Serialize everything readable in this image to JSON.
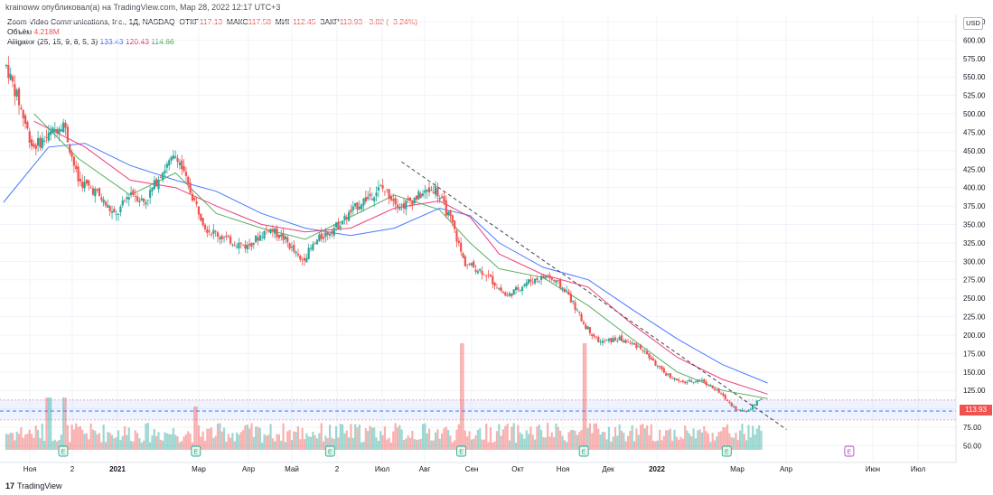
{
  "header": {
    "credit": "krainoww опубликовал(а) на TradingView.com, Мар 28, 2022 12:17 UTC+3",
    "title": "Zoom Video Communications, Inc., 1Д, NASDAQ",
    "ohlc": [
      {
        "label": "ОТКР",
        "value": "117.13"
      },
      {
        "label": "МАКС",
        "value": "117.58"
      },
      {
        "label": "МИН",
        "value": "112.45"
      },
      {
        "label": "ЗАКР",
        "value": "113.93"
      }
    ],
    "change": "−3.82 (−3.24%)",
    "volume_label": "Объём",
    "volume_value": "4.218M",
    "indicator_label": "Alligator (25, 15, 9, 8, 5, 3)",
    "jaw_value": "133.43",
    "teeth_value": "120.43",
    "lips_value": "114.66"
  },
  "footer": {
    "logo_text": "TradingView"
  },
  "chart_data": {
    "type": "candlestick",
    "currency": "USD",
    "last_price": "113.93",
    "y_ticks": [
      "625.00",
      "600.00",
      "575.00",
      "550.00",
      "525.00",
      "500.00",
      "475.00",
      "450.00",
      "425.00",
      "400.00",
      "375.00",
      "350.00",
      "325.00",
      "300.00",
      "275.00",
      "250.00",
      "225.00",
      "200.00",
      "175.00",
      "150.00",
      "125.00",
      "100.00",
      "75.00",
      "50.00"
    ],
    "x_ticks": [
      "Ноя",
      "2",
      "2021",
      "Мар",
      "Апр",
      "Май",
      "2",
      "Июл",
      "Авг",
      "Сен",
      "Окт",
      "Ноя",
      "Дек",
      "2022",
      "Мар",
      "Апр",
      "Июн",
      "Июл"
    ],
    "price_path": [
      [
        "2020-10-22",
        565
      ],
      [
        "2020-10-30",
        520
      ],
      [
        "2020-11-09",
        455
      ],
      [
        "2020-11-20",
        470
      ],
      [
        "2020-11-30",
        490
      ],
      [
        "2020-12-10",
        410
      ],
      [
        "2020-12-22",
        395
      ],
      [
        "2021-01-05",
        360
      ],
      [
        "2021-01-15",
        395
      ],
      [
        "2021-01-25",
        380
      ],
      [
        "2021-02-05",
        420
      ],
      [
        "2021-02-16",
        445
      ],
      [
        "2021-02-24",
        400
      ],
      [
        "2021-03-08",
        345
      ],
      [
        "2021-03-22",
        330
      ],
      [
        "2021-04-05",
        320
      ],
      [
        "2021-04-20",
        345
      ],
      [
        "2021-05-01",
        330
      ],
      [
        "2021-05-12",
        300
      ],
      [
        "2021-05-24",
        330
      ],
      [
        "2021-06-07",
        350
      ],
      [
        "2021-06-22",
        380
      ],
      [
        "2021-07-06",
        400
      ],
      [
        "2021-07-20",
        375
      ],
      [
        "2021-08-02",
        390
      ],
      [
        "2021-08-12",
        400
      ],
      [
        "2021-08-24",
        350
      ],
      [
        "2021-09-01",
        298
      ],
      [
        "2021-09-15",
        285
      ],
      [
        "2021-09-30",
        252
      ],
      [
        "2021-10-14",
        272
      ],
      [
        "2021-10-28",
        280
      ],
      [
        "2021-11-10",
        260
      ],
      [
        "2021-11-22",
        215
      ],
      [
        "2021-12-03",
        190
      ],
      [
        "2021-12-16",
        195
      ],
      [
        "2021-12-31",
        183
      ],
      [
        "2022-01-15",
        150
      ],
      [
        "2022-01-28",
        135
      ],
      [
        "2022-02-10",
        140
      ],
      [
        "2022-02-24",
        120
      ],
      [
        "2022-03-07",
        98
      ],
      [
        "2022-03-14",
        97
      ],
      [
        "2022-03-25",
        117
      ]
    ],
    "alligator": {
      "jaw": [
        [
          "2020-10-20",
          380
        ],
        [
          "2020-11-20",
          455
        ],
        [
          "2020-12-15",
          460
        ],
        [
          "2021-01-15",
          430
        ],
        [
          "2021-02-15",
          410
        ],
        [
          "2021-03-15",
          395
        ],
        [
          "2021-04-15",
          365
        ],
        [
          "2021-05-15",
          345
        ],
        [
          "2021-06-15",
          335
        ],
        [
          "2021-07-15",
          345
        ],
        [
          "2021-08-15",
          372
        ],
        [
          "2021-09-05",
          362
        ],
        [
          "2021-09-25",
          325
        ],
        [
          "2021-10-25",
          292
        ],
        [
          "2021-11-25",
          275
        ],
        [
          "2021-12-25",
          235
        ],
        [
          "2022-01-25",
          195
        ],
        [
          "2022-02-25",
          160
        ],
        [
          "2022-03-28",
          135
        ]
      ],
      "teeth": [
        [
          "2020-11-10",
          490
        ],
        [
          "2020-12-15",
          455
        ],
        [
          "2021-01-15",
          410
        ],
        [
          "2021-02-15",
          400
        ],
        [
          "2021-03-15",
          375
        ],
        [
          "2021-04-15",
          350
        ],
        [
          "2021-05-15",
          340
        ],
        [
          "2021-06-15",
          345
        ],
        [
          "2021-07-15",
          372
        ],
        [
          "2021-08-15",
          382
        ],
        [
          "2021-09-05",
          360
        ],
        [
          "2021-09-25",
          310
        ],
        [
          "2021-10-25",
          282
        ],
        [
          "2021-11-25",
          265
        ],
        [
          "2021-12-25",
          215
        ],
        [
          "2022-01-25",
          170
        ],
        [
          "2022-02-25",
          140
        ],
        [
          "2022-03-28",
          120
        ]
      ],
      "lips": [
        [
          "2020-11-10",
          500
        ],
        [
          "2020-12-10",
          440
        ],
        [
          "2021-01-15",
          390
        ],
        [
          "2021-02-15",
          420
        ],
        [
          "2021-03-15",
          365
        ],
        [
          "2021-04-15",
          345
        ],
        [
          "2021-05-15",
          330
        ],
        [
          "2021-06-15",
          360
        ],
        [
          "2021-07-15",
          390
        ],
        [
          "2021-08-15",
          370
        ],
        [
          "2021-09-05",
          325
        ],
        [
          "2021-09-25",
          290
        ],
        [
          "2021-10-25",
          278
        ],
        [
          "2021-11-25",
          240
        ],
        [
          "2021-12-25",
          195
        ],
        [
          "2022-01-25",
          150
        ],
        [
          "2022-02-25",
          125
        ],
        [
          "2022-03-28",
          114
        ]
      ]
    },
    "trendline": [
      [
        "2021-07-20",
        435
      ],
      [
        "2022-04-10",
        72
      ]
    ],
    "earnings_markers": [
      "2020-11-30",
      "2021-03-01",
      "2021-06-01",
      "2021-08-30",
      "2021-11-22",
      "2022-02-28",
      "2022-05-23"
    ],
    "volume_peaks": [
      [
        "2020-11-20",
        "high"
      ],
      [
        "2020-12-01",
        "high"
      ],
      [
        "2021-03-01",
        "medium"
      ],
      [
        "2021-08-31",
        "very high"
      ],
      [
        "2021-11-22",
        "very high"
      ]
    ],
    "support_zone": [
      85,
      112
    ],
    "support_line": 97,
    "ylim": [
      50,
      625
    ],
    "grid": true
  }
}
